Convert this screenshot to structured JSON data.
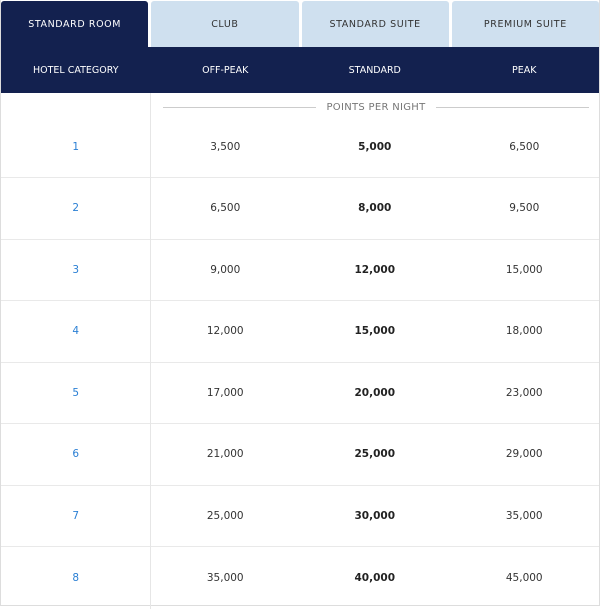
{
  "tabs": [
    {
      "label": "STANDARD ROOM",
      "active": true
    },
    {
      "label": "CLUB"
    },
    {
      "label": "STANDARD SUITE"
    },
    {
      "label": "PREMIUM SUITE"
    }
  ],
  "columns": [
    "HOTEL CATEGORY",
    "OFF-PEAK",
    "STANDARD",
    "PEAK"
  ],
  "points_label": "POINTS PER NIGHT",
  "rows": [
    [
      "1",
      "3,500",
      "5,000",
      "6,500"
    ],
    [
      "2",
      "6,500",
      "8,000",
      "9,500"
    ],
    [
      "3",
      "9,000",
      "12,000",
      "15,000"
    ],
    [
      "4",
      "12,000",
      "15,000",
      "18,000"
    ],
    [
      "5",
      "17,000",
      "20,000",
      "23,000"
    ],
    [
      "6",
      "21,000",
      "25,000",
      "29,000"
    ],
    [
      "7",
      "25,000",
      "30,000",
      "35,000"
    ],
    [
      "8",
      "35,000",
      "40,000",
      "45,000"
    ]
  ],
  "colors": {
    "navy": "#13214f",
    "tab_inactive": "#cfe0ef",
    "link": "#2a7fd4"
  }
}
